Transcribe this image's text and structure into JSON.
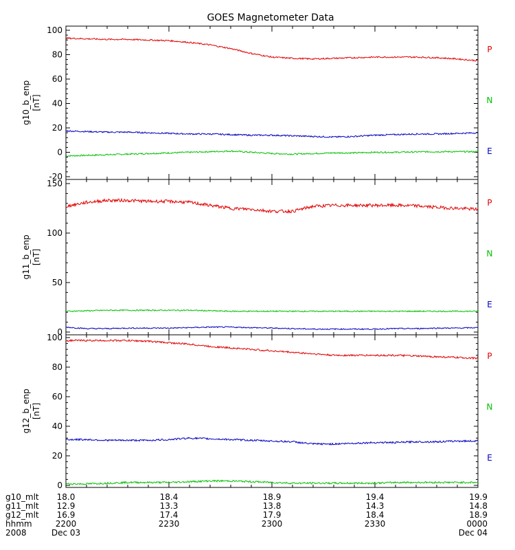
{
  "chart_data": {
    "type": "line",
    "title": "GOES Magnetometer Data",
    "panels": [
      {
        "ylabel": "g10_b_enp",
        "unit": "[nT]",
        "ylim": [
          -20,
          100
        ],
        "yticks": [
          -20,
          0,
          20,
          40,
          60,
          80,
          100
        ],
        "series": [
          {
            "name": "P",
            "color": "#e00000",
            "x": [
              0,
              6,
              12,
              18,
              24,
              30,
              36,
              42,
              48,
              54,
              60,
              66,
              72,
              78,
              84,
              90,
              96,
              102,
              108,
              114,
              120
            ],
            "values": [
              93.5,
              93,
              92.5,
              92.5,
              92,
              91.5,
              90,
              88,
              85,
              81,
              78,
              77,
              76.5,
              77,
              77.5,
              78,
              78,
              78,
              77.5,
              76.5,
              75
            ]
          },
          {
            "name": "N",
            "color": "#00c000",
            "x": [
              0,
              6,
              12,
              18,
              24,
              30,
              36,
              42,
              48,
              54,
              60,
              66,
              72,
              78,
              84,
              90,
              96,
              102,
              108,
              114,
              120
            ],
            "values": [
              -3,
              -2.5,
              -2,
              -1.5,
              -1,
              -0.5,
              0,
              0.5,
              1,
              0,
              -1,
              -1.5,
              -1,
              -0.5,
              -0.5,
              0,
              0,
              0.3,
              0.5,
              0.5,
              0.5
            ]
          },
          {
            "name": "E",
            "color": "#0000c0",
            "x": [
              0,
              6,
              12,
              18,
              24,
              30,
              36,
              42,
              48,
              54,
              60,
              66,
              72,
              78,
              84,
              90,
              96,
              102,
              108,
              114,
              120
            ],
            "values": [
              17.5,
              17,
              16.5,
              16.5,
              16,
              15.5,
              15,
              15,
              14.5,
              14,
              14,
              13.5,
              13,
              12.5,
              13,
              14,
              14.5,
              15,
              15,
              15.5,
              16
            ]
          }
        ]
      },
      {
        "ylabel": "g11_b_enp",
        "unit": "[nT]",
        "ylim": [
          0,
          150
        ],
        "yticks": [
          0,
          50,
          100,
          150
        ],
        "series": [
          {
            "name": "P",
            "color": "#e00000",
            "x": [
              0,
              6,
              12,
              18,
              24,
              30,
              36,
              42,
              48,
              54,
              60,
              66,
              72,
              78,
              84,
              90,
              96,
              102,
              108,
              114,
              120
            ],
            "values": [
              127,
              131,
              133,
              133,
              132,
              132,
              131,
              128,
              125,
              124,
              122,
              122,
              127,
              128,
              128,
              128,
              128,
              127.5,
              126,
              125,
              124
            ]
          },
          {
            "name": "N",
            "color": "#00c000",
            "x": [
              0,
              6,
              12,
              18,
              24,
              30,
              36,
              42,
              48,
              54,
              60,
              66,
              72,
              78,
              84,
              90,
              96,
              102,
              108,
              114,
              120
            ],
            "values": [
              21,
              21.5,
              22,
              22,
              22,
              22,
              22,
              21.5,
              21,
              21,
              21,
              21,
              21,
              21,
              21,
              21,
              21,
              21,
              21,
              21,
              21
            ]
          },
          {
            "name": "E",
            "color": "#0000c0",
            "x": [
              0,
              6,
              12,
              18,
              24,
              30,
              36,
              42,
              48,
              54,
              60,
              66,
              72,
              78,
              84,
              90,
              96,
              102,
              108,
              114,
              120
            ],
            "values": [
              5,
              3.5,
              3.5,
              4,
              4,
              4,
              4.5,
              5,
              5,
              4.5,
              4,
              3.5,
              3,
              3,
              3,
              3,
              3.5,
              3.5,
              4,
              4,
              4.5
            ]
          }
        ]
      },
      {
        "ylabel": "g12_b_enp",
        "unit": "[nT]",
        "ylim": [
          0,
          100
        ],
        "yticks": [
          0,
          20,
          40,
          60,
          80,
          100
        ],
        "series": [
          {
            "name": "P",
            "color": "#e00000",
            "x": [
              0,
              6,
              12,
              18,
              24,
              30,
              36,
              42,
              48,
              54,
              60,
              66,
              72,
              78,
              84,
              90,
              96,
              102,
              108,
              114,
              120
            ],
            "values": [
              98,
              98,
              98,
              98,
              97.5,
              96.5,
              95.5,
              94,
              93,
              92,
              91,
              90,
              89,
              88,
              88,
              88,
              88,
              87.5,
              87,
              86.5,
              86
            ]
          },
          {
            "name": "N",
            "color": "#00c000",
            "x": [
              0,
              6,
              12,
              18,
              24,
              30,
              36,
              42,
              48,
              54,
              60,
              66,
              72,
              78,
              84,
              90,
              96,
              102,
              108,
              114,
              120
            ],
            "values": [
              1,
              1,
              1.5,
              2,
              2,
              2,
              2.5,
              3,
              3,
              2.5,
              2,
              1.5,
              1.5,
              1.5,
              1.5,
              1.5,
              2,
              2,
              2,
              2,
              2
            ]
          },
          {
            "name": "E",
            "color": "#0000c0",
            "x": [
              0,
              6,
              12,
              18,
              24,
              30,
              36,
              42,
              48,
              54,
              60,
              66,
              72,
              78,
              84,
              90,
              96,
              102,
              108,
              114,
              120
            ],
            "values": [
              31,
              31,
              30.5,
              30.5,
              30.5,
              31,
              32,
              31.5,
              31,
              30.5,
              30,
              29.5,
              28,
              28,
              28.5,
              29,
              29,
              29.5,
              29.5,
              30,
              30
            ]
          }
        ]
      }
    ],
    "xticks": [
      0,
      30,
      60,
      90,
      120
    ],
    "xtick_rows": [
      {
        "label": "g10_mlt",
        "values": [
          "18.0",
          "18.4",
          "18.9",
          "19.4",
          "19.9"
        ]
      },
      {
        "label": "g11_mlt",
        "values": [
          "12.9",
          "13.3",
          "13.8",
          "14.3",
          "14.8"
        ]
      },
      {
        "label": "g12_mlt",
        "values": [
          "16.9",
          "17.4",
          "17.9",
          "18.4",
          "18.9"
        ]
      },
      {
        "label": "hhmm",
        "values": [
          "2200",
          "2230",
          "2300",
          "2330",
          "0000"
        ]
      },
      {
        "label": "2008",
        "values": [
          "Dec 03",
          "",
          "",
          "",
          "Dec 04"
        ]
      }
    ]
  }
}
